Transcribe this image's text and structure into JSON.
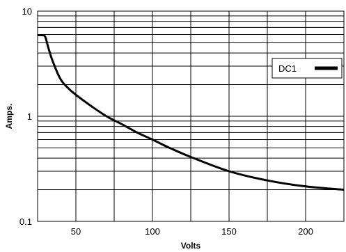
{
  "chart_data": {
    "type": "line",
    "title": "",
    "xlabel": "Volts",
    "ylabel": "Amps.",
    "xlim": [
      25,
      225
    ],
    "ylim": [
      0.1,
      10
    ],
    "yscale": "log",
    "grid": true,
    "x_ticks": [
      50,
      100,
      150,
      200
    ],
    "x_tick_labels": [
      "50",
      "100",
      "150",
      "200"
    ],
    "y_ticks": [
      0.1,
      1,
      10
    ],
    "y_tick_labels": [
      "0.1",
      "1",
      "10"
    ],
    "legend": {
      "placement": "top-right",
      "entries": [
        "DC1"
      ]
    },
    "series": [
      {
        "name": "DC1",
        "color": "#000000",
        "x": [
          25,
          28,
          30,
          32,
          35,
          40,
          45,
          50,
          60,
          70,
          80,
          90,
          100,
          110,
          125,
          150,
          175,
          200,
          225
        ],
        "y": [
          5.9,
          5.9,
          5.7,
          4.5,
          3.3,
          2.25,
          1.85,
          1.6,
          1.25,
          1.0,
          0.84,
          0.7,
          0.6,
          0.51,
          0.41,
          0.3,
          0.245,
          0.215,
          0.2
        ]
      }
    ]
  }
}
